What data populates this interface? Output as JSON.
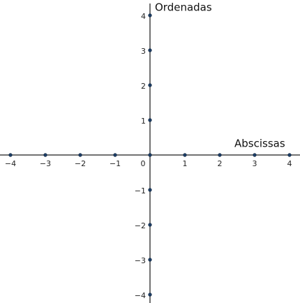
{
  "chart_data": {
    "type": "axes",
    "x_label": "Abscissas",
    "y_label": "Ordenadas",
    "xlim": [
      -4.3,
      4.3
    ],
    "ylim": [
      -4.24,
      4.44
    ],
    "xticks": [
      {
        "value": -4,
        "label": "−4"
      },
      {
        "value": -3,
        "label": "−3"
      },
      {
        "value": -2,
        "label": "−2"
      },
      {
        "value": -1,
        "label": "−1"
      },
      0,
      1,
      2,
      3,
      4
    ],
    "yticks": [
      {
        "value": -4,
        "label": "−4"
      },
      {
        "value": -3,
        "label": "−3"
      },
      {
        "value": -2,
        "label": "−2"
      },
      {
        "value": -1,
        "label": "−1"
      },
      1,
      2,
      3,
      4
    ],
    "color": "#1c3d66"
  }
}
